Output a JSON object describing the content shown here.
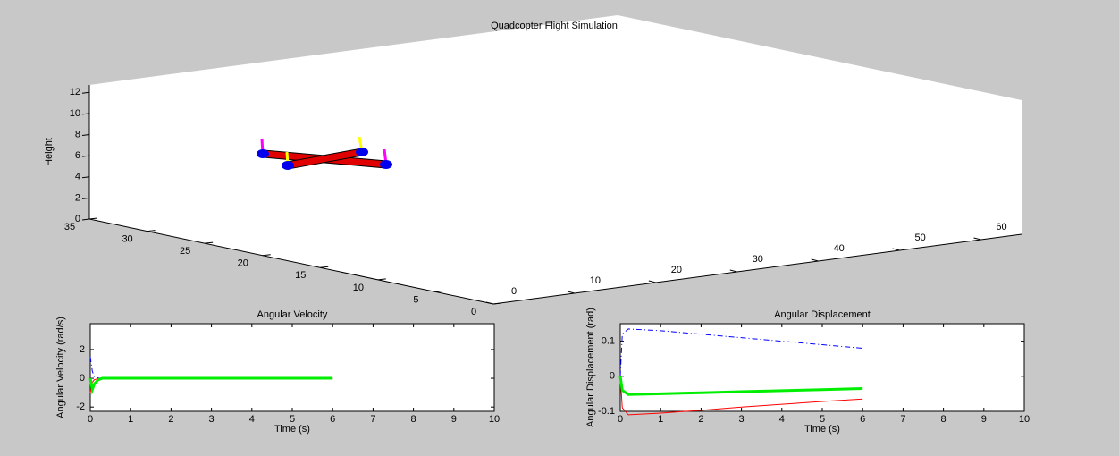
{
  "chart_data": [
    {
      "type": "scene3d",
      "title": "Quadcopter Flight Simulation",
      "zlabel": "Height",
      "xlim": [
        0,
        65
      ],
      "ylim": [
        0,
        35
      ],
      "zlim": [
        0,
        12.7
      ],
      "xticks": [
        0,
        10,
        20,
        30,
        40,
        50,
        60
      ],
      "yticks": [
        0,
        5,
        10,
        15,
        20,
        25,
        30,
        35
      ],
      "zticks": [
        0,
        2,
        4,
        6,
        8,
        10,
        12
      ]
    },
    {
      "type": "line",
      "title": "Angular Velocity",
      "xlabel": "Time (s)",
      "ylabel": "Angular Velocity (rad/s)",
      "x": [
        0,
        0.05,
        0.1,
        0.2,
        0.3,
        0.5,
        1,
        2,
        3,
        4,
        5,
        6
      ],
      "series": [
        {
          "color": "#0000ff",
          "linestyle": "dashdot",
          "linewidth": 1,
          "values": [
            1.5,
            0.5,
            0.1,
            0.02,
            0,
            0,
            0,
            0,
            0,
            0,
            0,
            0
          ]
        },
        {
          "color": "#ff0000",
          "linestyle": "solid",
          "linewidth": 1,
          "values": [
            -1,
            -0.3,
            -0.1,
            -0.02,
            0,
            0,
            0,
            0,
            0,
            0,
            0,
            0
          ]
        },
        {
          "color": "#00ee00",
          "linestyle": "solid",
          "linewidth": 3,
          "values": [
            0,
            -0.8,
            -0.4,
            -0.1,
            0,
            0,
            0,
            0,
            0,
            0,
            0,
            0
          ]
        }
      ],
      "xlim": [
        0,
        10
      ],
      "ylim": [
        -2.3,
        3.8
      ],
      "xticks": [
        0,
        1,
        2,
        3,
        4,
        5,
        6,
        7,
        8,
        9,
        10
      ],
      "yticks": [
        -2,
        0,
        2
      ]
    },
    {
      "type": "line",
      "title": "Angular Displacement",
      "xlabel": "Time (s)",
      "ylabel": "Angular Displacement (rad)",
      "x": [
        0,
        0.05,
        0.2,
        1,
        2,
        3,
        4,
        5,
        6
      ],
      "series": [
        {
          "color": "#0000ff",
          "linestyle": "dashdot",
          "linewidth": 1,
          "values": [
            0,
            0.12,
            0.135,
            0.13,
            0.12,
            0.11,
            0.1,
            0.09,
            0.08
          ]
        },
        {
          "color": "#ff0000",
          "linestyle": "solid",
          "linewidth": 1,
          "values": [
            0,
            -0.09,
            -0.11,
            -0.105,
            -0.097,
            -0.088,
            -0.08,
            -0.072,
            -0.065
          ]
        },
        {
          "color": "#00ee00",
          "linestyle": "solid",
          "linewidth": 3,
          "values": [
            0,
            -0.04,
            -0.052,
            -0.05,
            -0.047,
            -0.044,
            -0.041,
            -0.038,
            -0.035
          ]
        }
      ],
      "xlim": [
        0,
        10
      ],
      "ylim": [
        -0.1,
        0.15
      ],
      "xticks": [
        0,
        1,
        2,
        3,
        4,
        5,
        6,
        7,
        8,
        9,
        10
      ],
      "yticks": [
        -0.1,
        0,
        0.1
      ]
    }
  ]
}
